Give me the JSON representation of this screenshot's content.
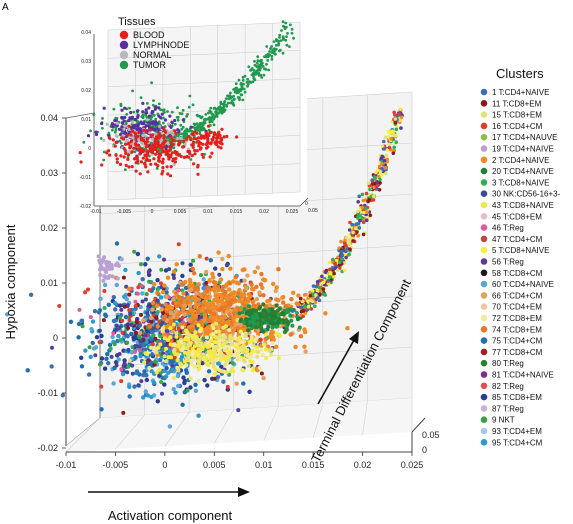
{
  "panel_label": "A",
  "chart_data": [
    {
      "type": "scatter",
      "title": "",
      "xlabel": "Activation component",
      "ylabel": "Hypoxia component",
      "zlabel": "Terminal Differentiation Component",
      "xlim": [
        -0.01,
        0.025
      ],
      "ylim": [
        -0.02,
        0.04
      ],
      "zlim": [
        0,
        0.05
      ],
      "x_ticks": [
        "-0.01",
        "-0.005",
        "0",
        "0.005",
        "0.01",
        "0.015",
        "0.02",
        "0.025"
      ],
      "y_ticks": [
        "-0.02",
        "-0.01",
        "0",
        "0.01",
        "0.02",
        "0.03",
        "0.04"
      ],
      "z_ticks": [
        "0",
        "0.05"
      ],
      "grid": true,
      "legend_title": "Clusters",
      "legend_position": "right",
      "series": [
        {
          "name": "1 T:CD4+NAIVE",
          "color": "#3b6fb6"
        },
        {
          "name": "11 T:CD8+EM",
          "color": "#8b1a1a"
        },
        {
          "name": "15 T:CD8+EM",
          "color": "#e2e27a"
        },
        {
          "name": "16 T:CD4+CM",
          "color": "#e03c2c"
        },
        {
          "name": "17 T:CD4+NAUVE",
          "color": "#8fbf3f"
        },
        {
          "name": "19 T:CD4+NAIVE",
          "color": "#b8a0d0"
        },
        {
          "name": "2 T:CD4+NAIVE",
          "color": "#f08a24"
        },
        {
          "name": "20 T:CD4+NAIVE",
          "color": "#1e7f3a"
        },
        {
          "name": "3 T:CD8+NAIVE",
          "color": "#2fae54"
        },
        {
          "name": "30 NK:CD56-16+3-",
          "color": "#3c4a9c"
        },
        {
          "name": "43 T:CD8+NAIVE",
          "color": "#f2e84a"
        },
        {
          "name": "45 T:CD8+EM",
          "color": "#e6c0c8"
        },
        {
          "name": "46 T:Reg",
          "color": "#e05a9a"
        },
        {
          "name": "47 T:CD4+CM",
          "color": "#c04848"
        },
        {
          "name": "5 T:CD8+NAIVE",
          "color": "#f5ef3a"
        },
        {
          "name": "56 T:Reg",
          "color": "#5b3a9c"
        },
        {
          "name": "58 T:CD8+CM",
          "color": "#1a1a1a"
        },
        {
          "name": "60 T:CD4+NAIVE",
          "color": "#5aa7d6"
        },
        {
          "name": "66 T:CD4+CM",
          "color": "#e6a060"
        },
        {
          "name": "70 T:CD4+EM",
          "color": "#f0c6a0"
        },
        {
          "name": "72 T:CD8+EM",
          "color": "#f3e9a0"
        },
        {
          "name": "74 T:CD8+EM",
          "color": "#e67828"
        },
        {
          "name": "75 T:CD4+CM",
          "color": "#1f6fb0"
        },
        {
          "name": "77 T:CD8+CM",
          "color": "#a02020"
        },
        {
          "name": "80 T:Reg",
          "color": "#2f7f2f"
        },
        {
          "name": "81 T:CD4+NAIVE",
          "color": "#7a2f8f"
        },
        {
          "name": "82 T:Reg",
          "color": "#e05050"
        },
        {
          "name": "85 T:CD8+EM",
          "color": "#2a3f8f"
        },
        {
          "name": "87 T:Reg",
          "color": "#c8b0e0"
        },
        {
          "name": "9 NKT",
          "color": "#3aa040"
        },
        {
          "name": "93 T:CD4+EM",
          "color": "#aac8e6"
        },
        {
          "name": "95 T:CD4+CM",
          "color": "#2a9ad0"
        }
      ]
    },
    {
      "type": "scatter",
      "title": "",
      "xlim": [
        -0.01,
        0.03
      ],
      "ylim": [
        -0.02,
        0.04
      ],
      "x_ticks": [
        "-0.01",
        "-0.005",
        "0",
        "0.005",
        "0.01",
        "0.015",
        "0.02",
        "0.025"
      ],
      "y_ticks": [
        "-0.02",
        "-0.01",
        "0",
        "0.01",
        "0.02",
        "0.03",
        "0.04"
      ],
      "z_ticks": [
        "0",
        "0.05"
      ],
      "grid": true,
      "legend_title": "Tissues",
      "legend_position": "top-left",
      "series": [
        {
          "name": "BLOOD",
          "color": "#e3201c"
        },
        {
          "name": "LYMPHNODE",
          "color": "#5b2fa0"
        },
        {
          "name": "NORMAL",
          "color": "#b9b9b9"
        },
        {
          "name": "TUMOR",
          "color": "#1f9a4e"
        }
      ]
    }
  ]
}
